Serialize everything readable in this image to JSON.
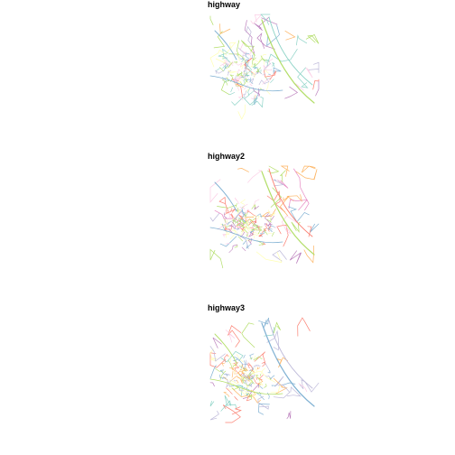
{
  "panels": [
    {
      "title": "highway",
      "palette": [
        "#80b1d3",
        "#fccde5",
        "#bebada",
        "#b3de69",
        "#ffffb3",
        "#8dd3c7",
        "#bc80bd",
        "#fdb462",
        "#fb8072"
      ]
    },
    {
      "title": "highway2",
      "palette": [
        "#80b1d3",
        "#fccde5",
        "#bc80bd",
        "#b3de69",
        "#ffffb3",
        "#fb8072",
        "#fdb462",
        "#bebada",
        "#e78ac3"
      ]
    },
    {
      "title": "highway3",
      "palette": [
        "#b3de69",
        "#fb8072",
        "#ffffb3",
        "#80b1d3",
        "#fdb462",
        "#bebada",
        "#8dd3c7",
        "#bc80bd",
        "#fccde5"
      ]
    }
  ]
}
